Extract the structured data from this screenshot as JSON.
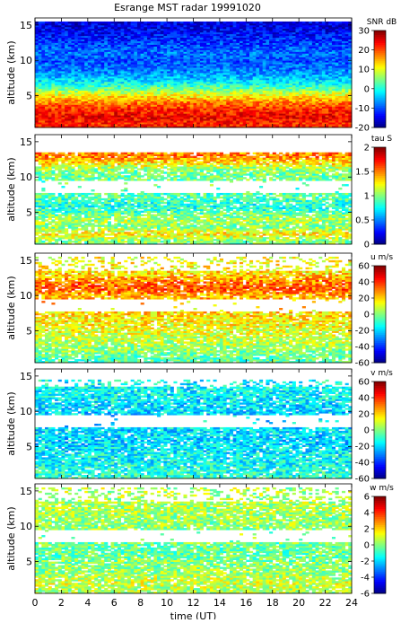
{
  "figure_title": "Esrange MST radar 19991020",
  "colorscale": "jet",
  "chart_data": [
    {
      "type": "heatmap",
      "panel": "snr",
      "ylabel": "altitude (km)",
      "ylim": [
        0.5,
        16
      ],
      "yticks": [
        5,
        10,
        15
      ],
      "xlim": [
        0,
        24
      ],
      "xticks": [
        0,
        2,
        4,
        6,
        8,
        10,
        12,
        14,
        16,
        18,
        20,
        22,
        24
      ],
      "colorbar": {
        "label": "SNR dB",
        "range": [
          -20,
          30
        ],
        "ticks": [
          -20,
          -10,
          0,
          10,
          20,
          30
        ]
      },
      "profile": {
        "altitudes": [
          1,
          2,
          3,
          4,
          5,
          6,
          7,
          8,
          9,
          10,
          11,
          12,
          13,
          14,
          15
        ],
        "values": [
          22,
          24,
          22,
          18,
          12,
          4,
          -2,
          -6,
          -8,
          -10,
          -8,
          -10,
          -12,
          -14,
          -15
        ]
      }
    },
    {
      "type": "heatmap",
      "panel": "tau",
      "ylabel": "altitude (km)",
      "ylim": [
        0.5,
        16
      ],
      "yticks": [
        5,
        10,
        15
      ],
      "xlim": [
        0,
        24
      ],
      "xticks": [
        0,
        2,
        4,
        6,
        8,
        10,
        12,
        14,
        16,
        18,
        20,
        22,
        24
      ],
      "colorbar": {
        "label": "tau S",
        "range": [
          0,
          2
        ],
        "ticks": [
          0,
          0.5,
          1,
          1.5,
          2
        ]
      },
      "profile": {
        "altitudes": [
          1,
          2,
          3,
          4,
          5,
          6,
          7,
          11,
          12,
          13
        ],
        "values": [
          1.0,
          1.3,
          1.0,
          1.1,
          0.9,
          0.8,
          0.9,
          1.0,
          1.3,
          1.5
        ]
      }
    },
    {
      "type": "heatmap",
      "panel": "u",
      "ylabel": "altitude (km)",
      "ylim": [
        0.5,
        16
      ],
      "yticks": [
        5,
        10,
        15
      ],
      "xlim": [
        0,
        24
      ],
      "xticks": [
        0,
        2,
        4,
        6,
        8,
        10,
        12,
        14,
        16,
        18,
        20,
        22,
        24
      ],
      "colorbar": {
        "label": "u m/s",
        "range": [
          -60,
          60
        ],
        "ticks": [
          -60,
          -40,
          -20,
          0,
          20,
          40,
          60
        ]
      },
      "profile": {
        "altitudes": [
          1,
          2,
          3,
          4,
          5,
          6,
          7,
          10,
          11,
          12,
          13,
          14,
          15
        ],
        "values": [
          -5,
          0,
          5,
          8,
          12,
          15,
          18,
          25,
          35,
          30,
          20,
          15,
          15
        ]
      }
    },
    {
      "type": "heatmap",
      "panel": "v",
      "ylabel": "altitude (km)",
      "ylim": [
        0.5,
        16
      ],
      "yticks": [
        5,
        10,
        15
      ],
      "xlim": [
        0,
        24
      ],
      "xticks": [
        0,
        2,
        4,
        6,
        8,
        10,
        12,
        14,
        16,
        18,
        20,
        22,
        24
      ],
      "colorbar": {
        "label": "v m/s",
        "range": [
          -60,
          60
        ],
        "ticks": [
          -60,
          -40,
          -20,
          0,
          20,
          40,
          60
        ]
      },
      "profile": {
        "altitudes": [
          1,
          2,
          3,
          4,
          5,
          6,
          7,
          10,
          11,
          12,
          13,
          14
        ],
        "values": [
          -10,
          -12,
          -15,
          -15,
          -18,
          -20,
          -18,
          -20,
          -18,
          -15,
          -15,
          -15
        ]
      }
    },
    {
      "type": "heatmap",
      "panel": "w",
      "ylabel": "altitude (km)",
      "xlabel": "time (UT)",
      "ylim": [
        0.5,
        16
      ],
      "yticks": [
        5,
        10,
        15
      ],
      "xlim": [
        0,
        24
      ],
      "xticks": [
        0,
        2,
        4,
        6,
        8,
        10,
        12,
        14,
        16,
        18,
        20,
        22,
        24
      ],
      "colorbar": {
        "label": "w m/s",
        "range": [
          -6,
          6
        ],
        "ticks": [
          -6,
          -4,
          -2,
          0,
          2,
          4,
          6
        ]
      },
      "profile": {
        "altitudes": [
          1,
          2,
          3,
          4,
          5,
          6,
          7,
          10,
          11,
          12,
          13,
          14,
          15
        ],
        "values": [
          0.5,
          1.0,
          0.5,
          0.2,
          0,
          -0.3,
          -0.3,
          0.3,
          0.3,
          0.5,
          0.5,
          0.5,
          0.5
        ]
      }
    }
  ]
}
